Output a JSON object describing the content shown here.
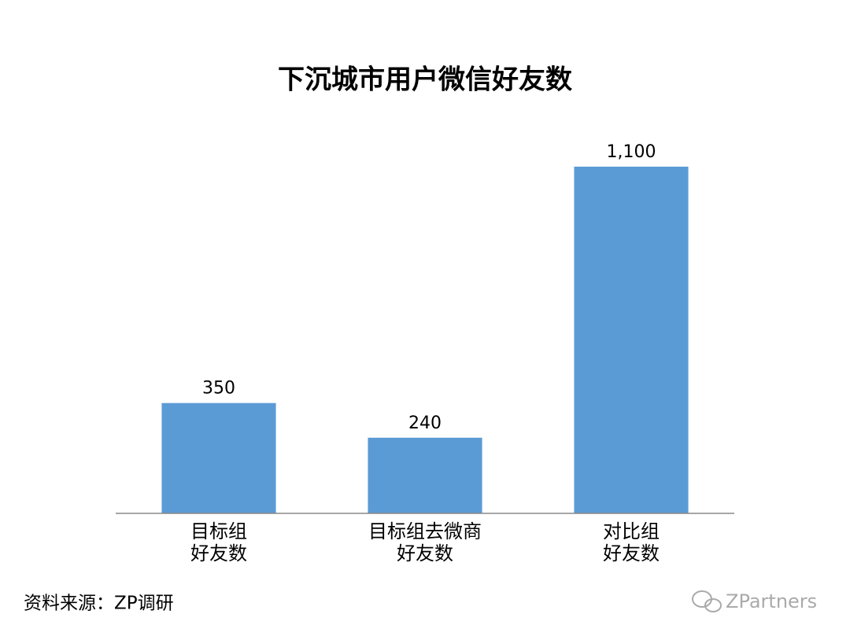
{
  "chart_data": {
    "type": "bar",
    "title": "下沉城市用户微信好友数",
    "categories": [
      [
        "目标组",
        "好友数"
      ],
      [
        "目标组去微商",
        "好友数"
      ],
      [
        "对比组",
        "好友数"
      ]
    ],
    "values": [
      350,
      240,
      1100
    ],
    "value_labels": [
      "350",
      "240",
      "1,100"
    ],
    "color": "#5b9bd5",
    "source": "资料来源：ZP调研",
    "watermark": "ZPartners"
  }
}
